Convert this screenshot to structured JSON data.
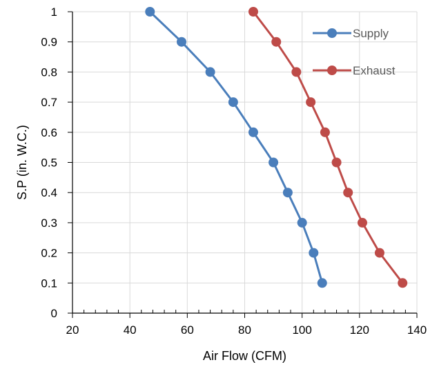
{
  "chart_data": {
    "type": "line",
    "xlabel": "Air Flow (CFM)",
    "ylabel": "S.P (in. W.C.)",
    "xlim": [
      20,
      140
    ],
    "ylim": [
      0,
      1
    ],
    "x_ticks": [
      "20",
      "40",
      "60",
      "80",
      "100",
      "120",
      "140"
    ],
    "y_ticks": [
      "0",
      "0.1",
      "0.2",
      "0.3",
      "0.4",
      "0.5",
      "0.6",
      "0.7",
      "0.8",
      "0.9",
      "1"
    ],
    "grid": true,
    "legend_position": "top-right",
    "series": [
      {
        "name": "Supply",
        "color": "#4a7ebb",
        "points": [
          {
            "x": 47,
            "y": 1.0
          },
          {
            "x": 58,
            "y": 0.9
          },
          {
            "x": 68,
            "y": 0.8
          },
          {
            "x": 76,
            "y": 0.7
          },
          {
            "x": 83,
            "y": 0.6
          },
          {
            "x": 90,
            "y": 0.5
          },
          {
            "x": 95,
            "y": 0.4
          },
          {
            "x": 100,
            "y": 0.3
          },
          {
            "x": 104,
            "y": 0.2
          },
          {
            "x": 107,
            "y": 0.1
          }
        ]
      },
      {
        "name": "Exhaust",
        "color": "#be4b48",
        "points": [
          {
            "x": 83,
            "y": 1.0
          },
          {
            "x": 91,
            "y": 0.9
          },
          {
            "x": 98,
            "y": 0.8
          },
          {
            "x": 103,
            "y": 0.7
          },
          {
            "x": 108,
            "y": 0.6
          },
          {
            "x": 112,
            "y": 0.5
          },
          {
            "x": 116,
            "y": 0.4
          },
          {
            "x": 121,
            "y": 0.3
          },
          {
            "x": 127,
            "y": 0.2
          },
          {
            "x": 135,
            "y": 0.1
          }
        ]
      }
    ]
  }
}
